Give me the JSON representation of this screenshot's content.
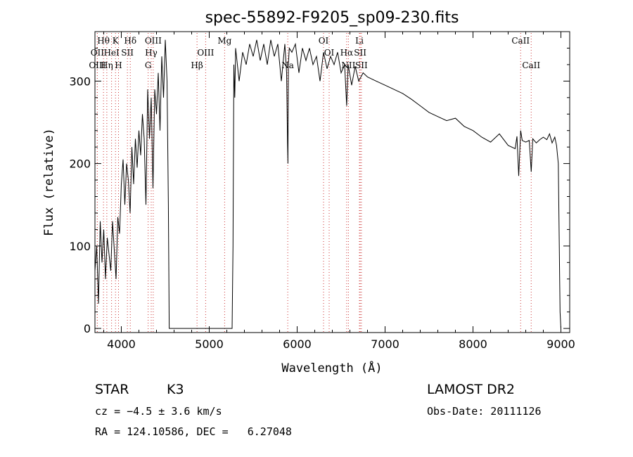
{
  "chart_data": {
    "type": "line",
    "title": "spec-55892-F9205_sp09-230.fits",
    "xlabel": "Wavelength (Å)",
    "ylabel": "Flux (relative)",
    "xlim": [
      3700,
      9100
    ],
    "ylim": [
      -5,
      360
    ],
    "xticks": [
      4000,
      5000,
      6000,
      7000,
      8000,
      9000
    ],
    "yticks": [
      0,
      100,
      200,
      300
    ],
    "xtick_labels": [
      "4000",
      "5000",
      "6000",
      "7000",
      "8000",
      "9000"
    ],
    "ytick_labels": [
      "0",
      "100",
      "200",
      "300"
    ],
    "grid": false,
    "line_color": "#000000",
    "marker_color": "#cc3333",
    "spectrum": {
      "x": [
        3700,
        3720,
        3740,
        3760,
        3780,
        3800,
        3820,
        3840,
        3860,
        3880,
        3900,
        3920,
        3940,
        3960,
        3980,
        4000,
        4020,
        4040,
        4060,
        4080,
        4100,
        4120,
        4140,
        4160,
        4180,
        4200,
        4220,
        4240,
        4260,
        4280,
        4300,
        4320,
        4340,
        4360,
        4380,
        4400,
        4420,
        4440,
        4460,
        4480,
        4500,
        4520,
        4535,
        4545,
        4560,
        4700,
        4900,
        5100,
        5260,
        5270,
        5280,
        5290,
        5300,
        5340,
        5380,
        5420,
        5460,
        5500,
        5540,
        5580,
        5620,
        5660,
        5700,
        5740,
        5780,
        5820,
        5860,
        5880,
        5890,
        5895,
        5900,
        5910,
        5940,
        5980,
        6020,
        6060,
        6100,
        6140,
        6180,
        6220,
        6260,
        6300,
        6340,
        6380,
        6420,
        6460,
        6500,
        6540,
        6563,
        6580,
        6620,
        6660,
        6700,
        6750,
        6800,
        6900,
        7000,
        7100,
        7200,
        7300,
        7400,
        7500,
        7600,
        7700,
        7800,
        7900,
        8000,
        8100,
        8200,
        8300,
        8400,
        8480,
        8500,
        8520,
        8542,
        8560,
        8600,
        8640,
        8662,
        8680,
        8720,
        8760,
        8800,
        8840,
        8870,
        8900,
        8930,
        8950,
        8970,
        8990,
        9000
      ],
      "y": [
        70,
        100,
        30,
        130,
        80,
        120,
        60,
        110,
        90,
        70,
        130,
        95,
        60,
        135,
        115,
        175,
        205,
        150,
        200,
        180,
        140,
        220,
        175,
        230,
        195,
        240,
        210,
        260,
        230,
        150,
        290,
        230,
        280,
        170,
        290,
        260,
        310,
        240,
        330,
        280,
        350,
        300,
        150,
        0,
        0,
        0,
        0,
        0,
        0,
        100,
        320,
        280,
        340,
        300,
        335,
        320,
        345,
        330,
        350,
        325,
        345,
        320,
        350,
        330,
        345,
        300,
        345,
        310,
        225,
        200,
        320,
        340,
        335,
        345,
        310,
        340,
        325,
        340,
        320,
        330,
        300,
        335,
        315,
        330,
        320,
        335,
        310,
        320,
        270,
        320,
        295,
        318,
        300,
        310,
        305,
        300,
        295,
        290,
        285,
        278,
        270,
        262,
        257,
        252,
        255,
        245,
        240,
        232,
        226,
        236,
        222,
        218,
        233,
        185,
        240,
        228,
        226,
        228,
        190,
        230,
        225,
        229,
        232,
        229,
        236,
        225,
        232,
        222,
        200,
        20,
        0
      ]
    },
    "line_markers": [
      {
        "label": "Hθ",
        "x": 3797,
        "row": 1
      },
      {
        "label": "K",
        "x": 3934,
        "row": 1
      },
      {
        "label": "Hδ",
        "x": 4102,
        "row": 1
      },
      {
        "label": "OIII",
        "x": 4363,
        "row": 1
      },
      {
        "label": "Mg",
        "x": 5175,
        "row": 1
      },
      {
        "label": "OI",
        "x": 6300,
        "row": 1
      },
      {
        "label": "Li",
        "x": 6708,
        "row": 1
      },
      {
        "label": "CaII",
        "x": 8542,
        "row": 1
      },
      {
        "label": "OII",
        "x": 3727,
        "row": 2
      },
      {
        "label": "HeI",
        "x": 3889,
        "row": 2
      },
      {
        "label": "SII",
        "x": 4069,
        "row": 2
      },
      {
        "label": "Hγ",
        "x": 4340,
        "row": 2
      },
      {
        "label": "OIII",
        "x": 4959,
        "row": 2
      },
      {
        "label": "OI",
        "x": 6364,
        "row": 2
      },
      {
        "label": "Hα",
        "x": 6563,
        "row": 2
      },
      {
        "label": "SII",
        "x": 6717,
        "row": 2
      },
      {
        "label": "OIII",
        "x": 3727,
        "row": 3
      },
      {
        "label": "Hη",
        "x": 3835,
        "row": 3
      },
      {
        "label": "H",
        "x": 3968,
        "row": 3
      },
      {
        "label": "G",
        "x": 4305,
        "row": 3
      },
      {
        "label": "Hβ",
        "x": 4861,
        "row": 3
      },
      {
        "label": "Na",
        "x": 5893,
        "row": 3
      },
      {
        "label": "NII",
        "x": 6583,
        "row": 3
      },
      {
        "label": "SII",
        "x": 6731,
        "row": 3
      },
      {
        "label": "CaII",
        "x": 8662,
        "row": 3
      }
    ]
  },
  "info": {
    "object_class": "STAR",
    "subclass": "K3",
    "survey": "LAMOST DR2",
    "redshift": "cz = −4.5 ± 3.6 km/s",
    "obs_date": "Obs-Date: 20111126",
    "coords": "RA = 124.10586, DEC =   6.27048"
  }
}
